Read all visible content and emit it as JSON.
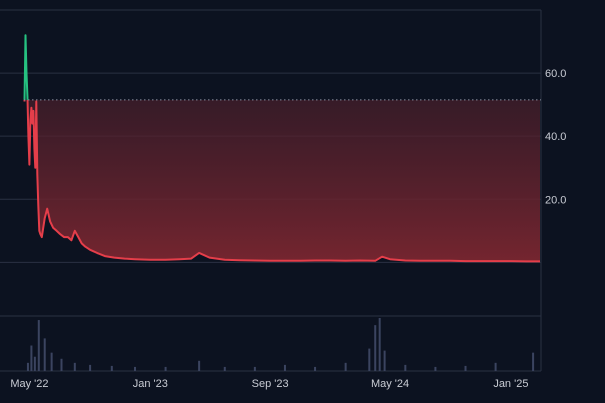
{
  "chart_data": {
    "type": "area",
    "colors": {
      "background": "#0c1220",
      "grid": "#2a3142",
      "line_below": "#e53e4a",
      "line_above": "#26c281",
      "fill_top": "#3a1d2a",
      "fill_bottom": "#7a2630",
      "baseline": "#8a90a0",
      "volume": "#3b4460",
      "text": "#c9ccd4"
    },
    "baseline_value": 51.5,
    "y_axis": {
      "ticks": [
        20.0,
        40.0,
        60.0
      ],
      "tick_labels": [
        "20.0",
        "40.0",
        "60.0"
      ],
      "range": [
        -17,
        80
      ]
    },
    "x_axis": {
      "range": [
        "2022-04-20",
        "2025-03-01"
      ],
      "ticks": [
        "2022-05-01",
        "2023-01-01",
        "2023-09-01",
        "2024-05-01",
        "2025-01-01"
      ],
      "tick_labels": [
        "May '22",
        "Jan '23",
        "Sep '23",
        "May '24",
        "Jan '25"
      ]
    },
    "series": [
      {
        "x": [
          "2022-04-21",
          "2022-04-23",
          "2022-04-25",
          "2022-04-27",
          "2022-04-29",
          "2022-05-01",
          "2022-05-03",
          "2022-05-05",
          "2022-05-07",
          "2022-05-09",
          "2022-05-11",
          "2022-05-13",
          "2022-05-15",
          "2022-05-17",
          "2022-05-19",
          "2022-05-21",
          "2022-05-23",
          "2022-05-26",
          "2022-06-01",
          "2022-06-06",
          "2022-06-12",
          "2022-06-18",
          "2022-06-25",
          "2022-07-02",
          "2022-07-10",
          "2022-07-18",
          "2022-07-25",
          "2022-08-01",
          "2022-08-08",
          "2022-08-15",
          "2022-08-22",
          "2022-09-01",
          "2022-09-15",
          "2022-10-01",
          "2022-10-20",
          "2022-11-10",
          "2022-12-01",
          "2023-01-01",
          "2023-02-01",
          "2023-03-01",
          "2023-03-25",
          "2023-04-10",
          "2023-05-01",
          "2023-06-01",
          "2023-07-01",
          "2023-08-01",
          "2023-09-01",
          "2023-10-01",
          "2023-11-01",
          "2023-12-01",
          "2024-01-01",
          "2024-02-01",
          "2024-03-01",
          "2024-04-01",
          "2024-04-15",
          "2024-05-01",
          "2024-06-01",
          "2024-07-01",
          "2024-08-01",
          "2024-09-01",
          "2024-10-01",
          "2024-11-01",
          "2024-12-01",
          "2025-01-01",
          "2025-02-01",
          "2025-03-01"
        ],
        "y": [
          51,
          72,
          60,
          52,
          40,
          31,
          45,
          49,
          44,
          48,
          36,
          30,
          51,
          28,
          18,
          10,
          9,
          8,
          14,
          17,
          13,
          11,
          10,
          9,
          8,
          8,
          7,
          10,
          8,
          6,
          5,
          4,
          3,
          2,
          1.5,
          1.2,
          1,
          0.8,
          0.8,
          1,
          1.2,
          3,
          1.5,
          0.8,
          0.7,
          0.6,
          0.5,
          0.5,
          0.5,
          0.6,
          0.6,
          0.5,
          0.6,
          0.5,
          1.8,
          1,
          0.6,
          0.5,
          0.5,
          0.5,
          0.4,
          0.4,
          0.4,
          0.4,
          0.3,
          0.3
        ]
      }
    ],
    "volume": {
      "x": [
        "2022-04-28",
        "2022-05-05",
        "2022-05-12",
        "2022-05-20",
        "2022-06-01",
        "2022-06-15",
        "2022-07-05",
        "2022-08-01",
        "2022-09-01",
        "2022-10-15",
        "2022-12-01",
        "2023-02-01",
        "2023-04-10",
        "2023-06-01",
        "2023-08-01",
        "2023-10-01",
        "2023-12-01",
        "2024-02-01",
        "2024-03-20",
        "2024-04-01",
        "2024-04-10",
        "2024-04-20",
        "2024-06-01",
        "2024-08-01",
        "2024-10-01",
        "2024-12-01",
        "2025-02-15"
      ],
      "v": [
        8,
        25,
        14,
        50,
        32,
        18,
        12,
        8,
        6,
        5,
        4,
        4,
        10,
        4,
        4,
        6,
        4,
        8,
        22,
        45,
        52,
        20,
        6,
        4,
        5,
        8,
        18
      ]
    }
  }
}
